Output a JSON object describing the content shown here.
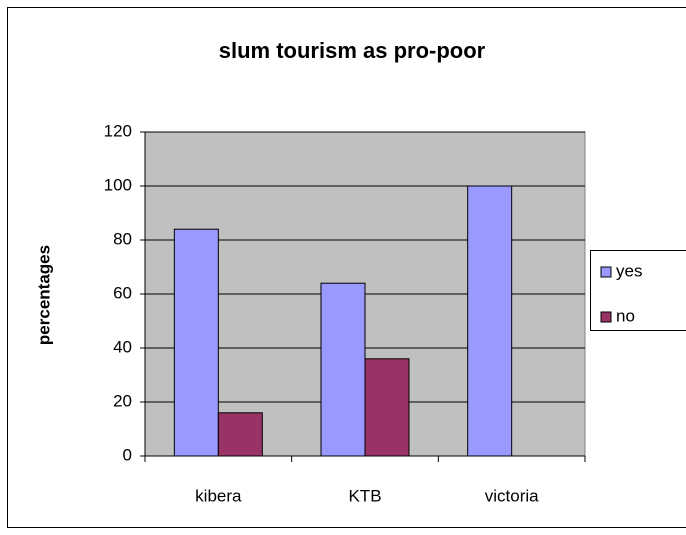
{
  "chart_data": {
    "type": "bar",
    "title": "slum tourism as pro-poor",
    "y_label": "percentages",
    "categories": [
      "kibera",
      "KTB",
      "victoria"
    ],
    "series": [
      {
        "name": "yes",
        "color": "#9999ff",
        "values": [
          84,
          64,
          100
        ]
      },
      {
        "name": "no",
        "color": "#993366",
        "values": [
          16,
          36,
          0
        ]
      }
    ],
    "ylim": [
      0,
      120
    ],
    "yticks": [
      0,
      20,
      40,
      60,
      80,
      100,
      120
    ],
    "grid": true,
    "legend": "right"
  }
}
